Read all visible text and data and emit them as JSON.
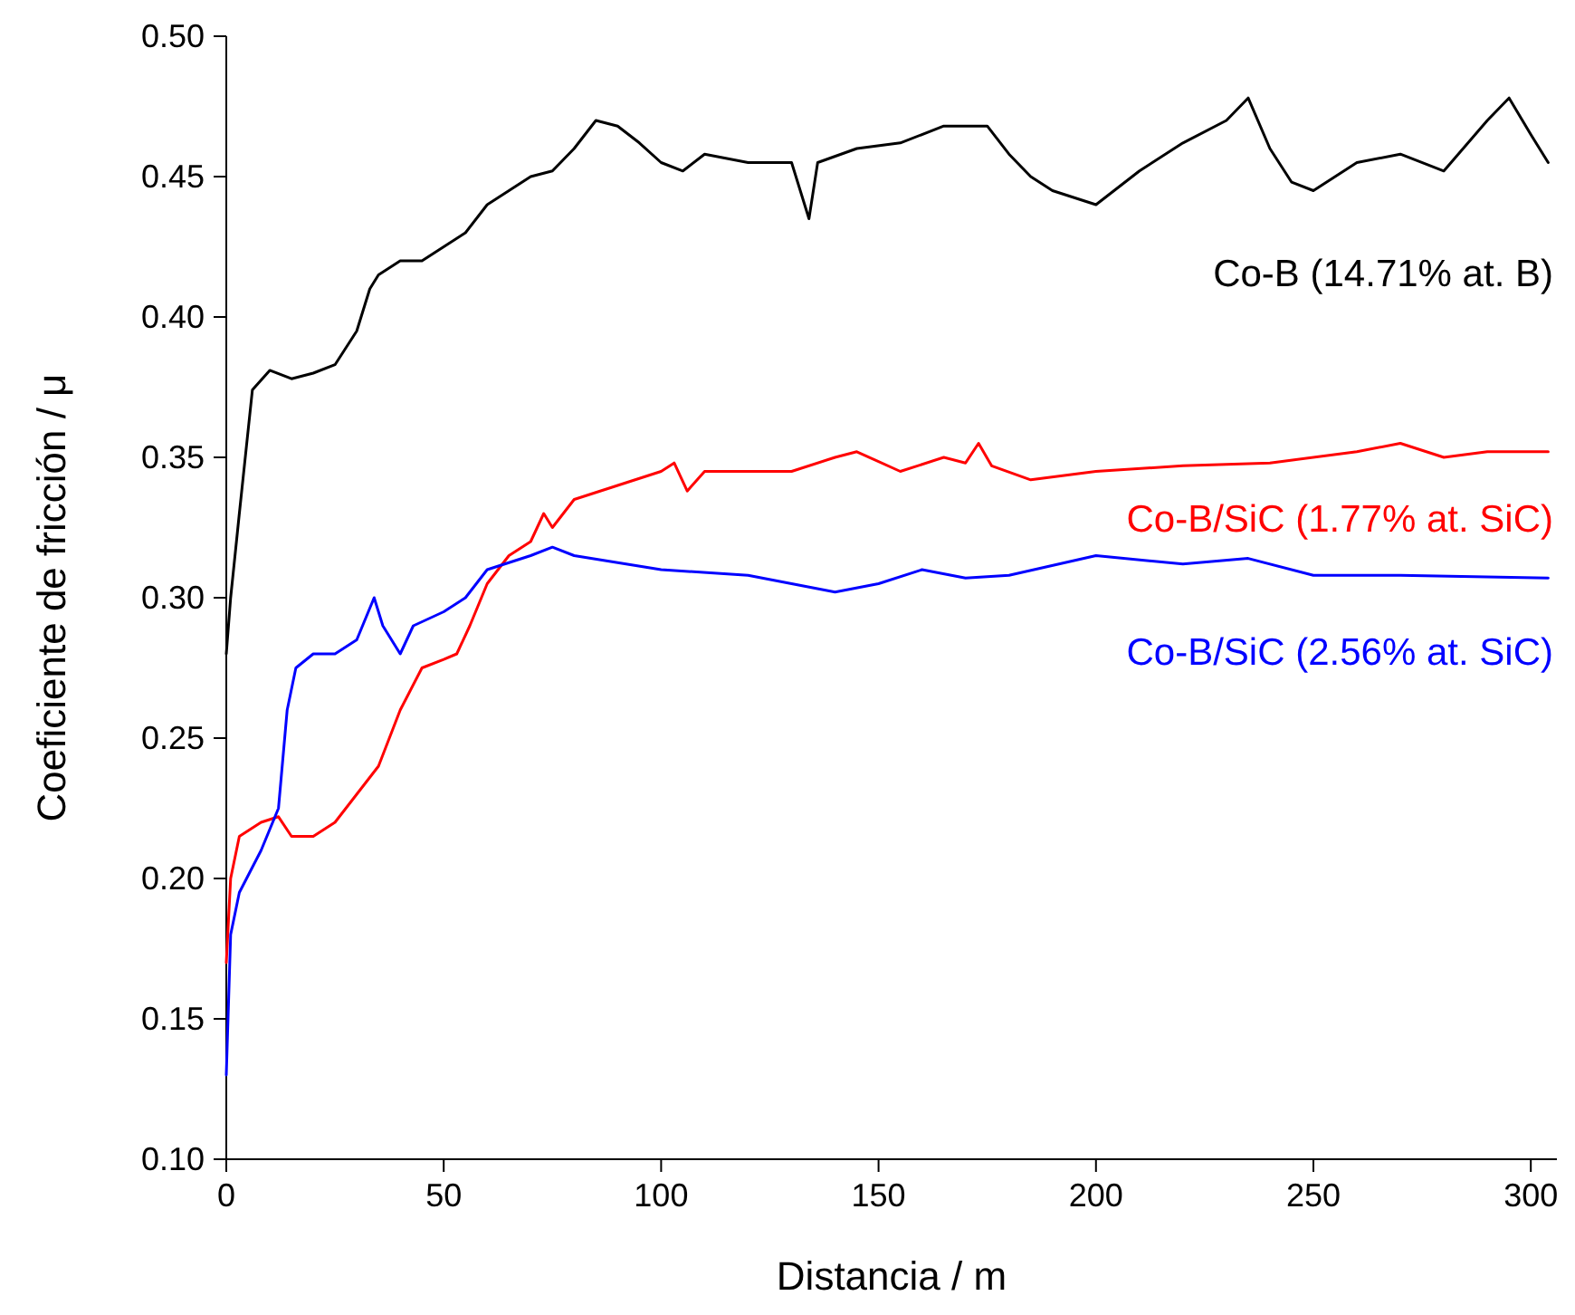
{
  "chart_data": {
    "type": "line",
    "xlabel": "Distancia / m",
    "ylabel": "Coeficiente de fricción / μ",
    "xlim": [
      0,
      306
    ],
    "xticks": [
      0,
      50,
      100,
      150,
      200,
      250,
      300
    ],
    "ylim": [
      0.1,
      0.5
    ],
    "yticks": [
      {
        "value": 0.1,
        "label": "0.10"
      },
      {
        "value": 0.15,
        "label": "0.15"
      },
      {
        "value": 0.2,
        "label": "0.20"
      },
      {
        "value": 0.25,
        "label": "0.25"
      },
      {
        "value": 0.3,
        "label": "0.30"
      },
      {
        "value": 0.35,
        "label": "0.35"
      },
      {
        "value": 0.4,
        "label": "0.40"
      },
      {
        "value": 0.45,
        "label": "0.45"
      },
      {
        "value": 0.5,
        "label": "0.50"
      }
    ],
    "grid": false,
    "legend": false,
    "marker": "none",
    "line_style": "solid",
    "series": [
      {
        "name": "Co-B (14.71% at. B)",
        "color": "#000000",
        "x": [
          0,
          1,
          3,
          6,
          10,
          15,
          20,
          25,
          30,
          33,
          35,
          40,
          45,
          50,
          55,
          60,
          65,
          70,
          75,
          80,
          85,
          90,
          95,
          100,
          105,
          110,
          120,
          130,
          134,
          136,
          145,
          155,
          165,
          175,
          180,
          185,
          190,
          200,
          210,
          220,
          230,
          235,
          240,
          245,
          250,
          260,
          270,
          280,
          290,
          295,
          300,
          304
        ],
        "values": [
          0.28,
          0.3,
          0.33,
          0.374,
          0.381,
          0.378,
          0.38,
          0.383,
          0.395,
          0.41,
          0.415,
          0.42,
          0.42,
          0.425,
          0.43,
          0.44,
          0.445,
          0.45,
          0.452,
          0.46,
          0.47,
          0.468,
          0.462,
          0.455,
          0.452,
          0.458,
          0.455,
          0.455,
          0.435,
          0.455,
          0.46,
          0.462,
          0.468,
          0.468,
          0.458,
          0.45,
          0.445,
          0.44,
          0.452,
          0.462,
          0.47,
          0.478,
          0.46,
          0.448,
          0.445,
          0.455,
          0.458,
          0.452,
          0.47,
          0.478,
          0.465,
          0.455
        ]
      },
      {
        "name": "Co-B/SiC (1.77% at. SiC)",
        "color": "#ff0000",
        "x": [
          0,
          1,
          3,
          8,
          12,
          15,
          20,
          25,
          30,
          35,
          40,
          45,
          50,
          53,
          56,
          60,
          65,
          70,
          73,
          75,
          80,
          90,
          100,
          103,
          106,
          110,
          120,
          130,
          140,
          145,
          155,
          165,
          170,
          173,
          176,
          185,
          200,
          220,
          240,
          260,
          270,
          280,
          290,
          304
        ],
        "values": [
          0.17,
          0.2,
          0.215,
          0.22,
          0.222,
          0.215,
          0.215,
          0.22,
          0.23,
          0.24,
          0.26,
          0.275,
          0.278,
          0.28,
          0.29,
          0.305,
          0.315,
          0.32,
          0.33,
          0.325,
          0.335,
          0.34,
          0.345,
          0.348,
          0.338,
          0.345,
          0.345,
          0.345,
          0.35,
          0.352,
          0.345,
          0.35,
          0.348,
          0.355,
          0.347,
          0.342,
          0.345,
          0.347,
          0.348,
          0.352,
          0.355,
          0.35,
          0.352,
          0.352
        ]
      },
      {
        "name": "Co-B/SiC (2.56% at. SiC)",
        "color": "#0000ff",
        "x": [
          0,
          1,
          3,
          8,
          12,
          14,
          16,
          20,
          25,
          30,
          34,
          36,
          40,
          43,
          50,
          55,
          60,
          70,
          75,
          80,
          100,
          120,
          130,
          140,
          150,
          160,
          170,
          180,
          200,
          220,
          235,
          250,
          270,
          304
        ],
        "values": [
          0.13,
          0.18,
          0.195,
          0.21,
          0.225,
          0.26,
          0.275,
          0.28,
          0.28,
          0.285,
          0.3,
          0.29,
          0.28,
          0.29,
          0.295,
          0.3,
          0.31,
          0.315,
          0.318,
          0.315,
          0.31,
          0.308,
          0.305,
          0.302,
          0.305,
          0.31,
          0.307,
          0.308,
          0.315,
          0.312,
          0.314,
          0.308,
          0.308,
          0.307
        ]
      }
    ]
  }
}
